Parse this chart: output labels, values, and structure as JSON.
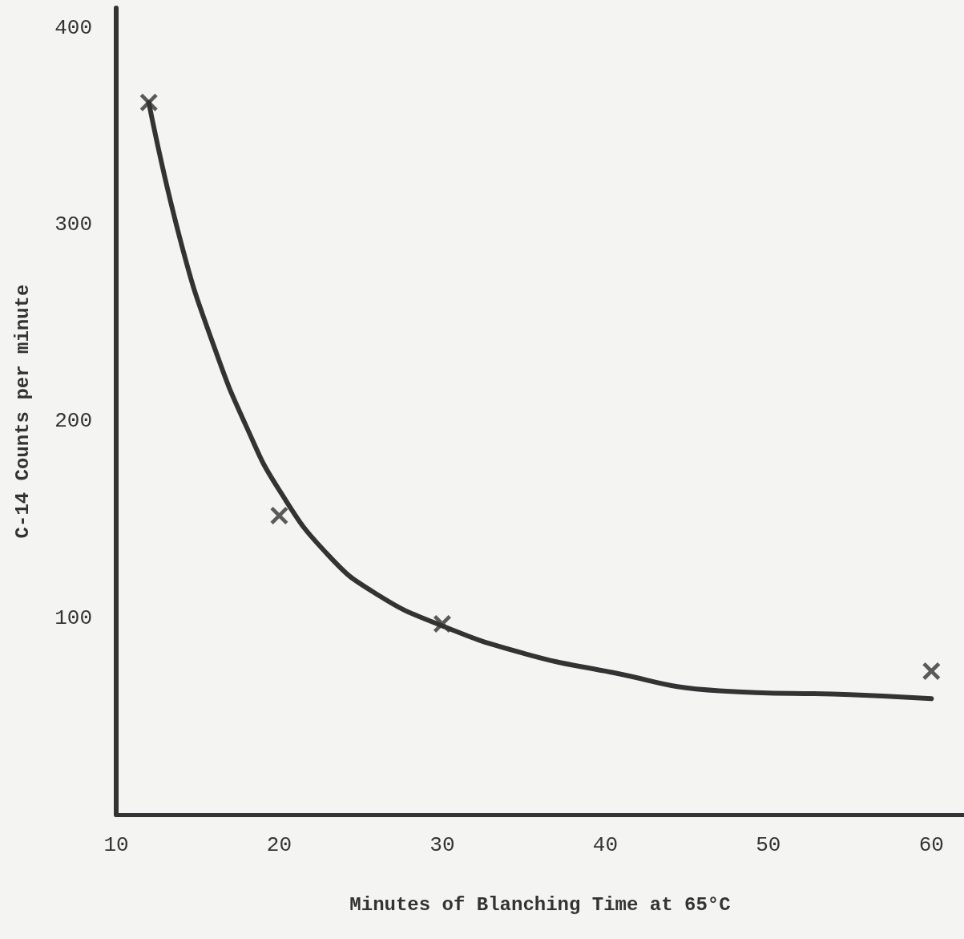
{
  "chart_data": {
    "type": "scatter",
    "xlabel": "Minutes of Blanching Time at 65°C",
    "ylabel": "C-14 Counts per minute",
    "xlim": [
      10,
      62
    ],
    "xticks": [
      10,
      20,
      30,
      40,
      50,
      60
    ],
    "ylim": [
      0,
      410
    ],
    "yticks": [
      100,
      200,
      300,
      400
    ],
    "grid": false,
    "series": [
      {
        "color": "#333333",
        "marker": "cross",
        "x": [
          12,
          20,
          30,
          60
        ],
        "values": [
          362,
          152,
          97,
          73
        ]
      },
      {
        "type": "line",
        "color": "#333333",
        "marker": "none",
        "line_style": "solid",
        "x": [
          12,
          14,
          16,
          18,
          20,
          23,
          26,
          30,
          35,
          40,
          47,
          55,
          60
        ],
        "values": [
          362,
          290,
          238,
          197,
          165,
          132,
          112,
          96,
          82,
          73,
          63,
          61,
          59
        ]
      }
    ]
  }
}
